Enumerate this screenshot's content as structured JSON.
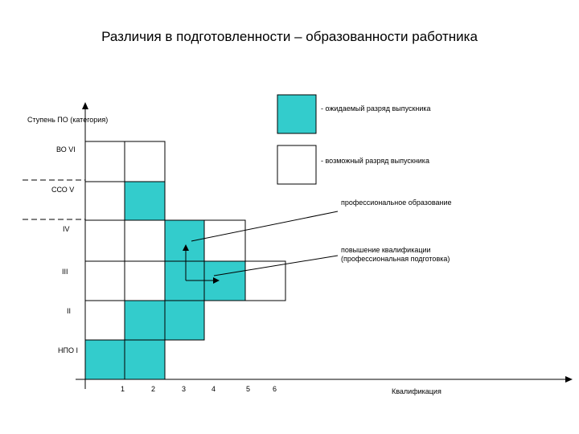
{
  "title": "Различия в подготовленности – образованности работника",
  "y_axis_label": "Ступень ПО (категория)",
  "x_axis_label": "Квалификация",
  "levels": [
    "НПО I",
    "II",
    "III",
    "IV",
    "ССО V",
    "ВО VI"
  ],
  "x_ticks": [
    "1",
    "2",
    "3",
    "4",
    "5",
    "6"
  ],
  "legend": {
    "expected": "- ожидаемый разряд выпускника",
    "possible": "- возможный разряд выпускника"
  },
  "annotations": {
    "professional_education": "профессиональное образование",
    "qualification_upgrade": "повышение квалификации (профессиональная подготовка)"
  },
  "colors": {
    "expected_fill": "#33cccc",
    "possible_fill": "#ffffff",
    "line": "#000000"
  },
  "cells": [
    {
      "level": "НПО I",
      "column": 1,
      "type": "expected"
    },
    {
      "level": "НПО I",
      "column": 2,
      "type": "expected"
    },
    {
      "level": "II",
      "column": 1,
      "type": "possible"
    },
    {
      "level": "II",
      "column": 2,
      "type": "expected"
    },
    {
      "level": "II",
      "column": 3,
      "type": "expected"
    },
    {
      "level": "III",
      "column": 1,
      "type": "possible"
    },
    {
      "level": "III",
      "column": 2,
      "type": "possible"
    },
    {
      "level": "III",
      "column": 3,
      "type": "expected"
    },
    {
      "level": "III",
      "column": 4,
      "type": "expected"
    },
    {
      "level": "III",
      "column": 5,
      "type": "possible"
    },
    {
      "level": "IV",
      "column": 1,
      "type": "possible"
    },
    {
      "level": "IV",
      "column": 2,
      "type": "possible"
    },
    {
      "level": "IV",
      "column": 3,
      "type": "expected"
    },
    {
      "level": "IV",
      "column": 4,
      "type": "possible"
    },
    {
      "level": "ССО V",
      "column": 1,
      "type": "possible"
    },
    {
      "level": "ССО V",
      "column": 2,
      "type": "expected"
    },
    {
      "level": "ВО VI",
      "column": 1,
      "type": "possible"
    },
    {
      "level": "ВО VI",
      "column": 2,
      "type": "possible"
    }
  ]
}
